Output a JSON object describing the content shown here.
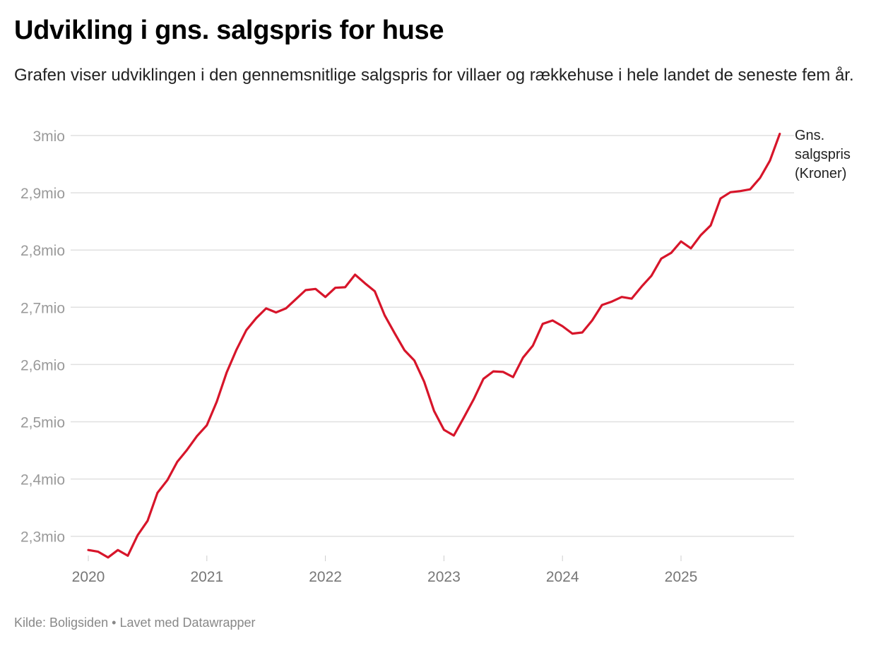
{
  "header": {
    "title": "Udvikling i gns. salgspris for huse",
    "subtitle": "Grafen viser udviklingen i den gennemsnitlige salgspris for villaer og rækkehuse i hele landet de seneste fem år."
  },
  "footer": {
    "source": "Kilde: Boligsiden",
    "separator": "•",
    "credit": "Lavet med Datawrapper"
  },
  "chart_data": {
    "type": "line",
    "title": "Udvikling i gns. salgspris for huse",
    "xlabel": "",
    "ylabel": "",
    "unit": "mio kr",
    "ylim": [
      2.25,
      3.0
    ],
    "yticks": [
      3.0,
      2.9,
      2.8,
      2.7,
      2.6,
      2.5,
      2.4,
      2.3
    ],
    "ytick_labels": [
      "3mio",
      "2,9mio",
      "2,8mio",
      "2,7mio",
      "2,6mio",
      "2,5mio",
      "2,4mio",
      "2,3mio"
    ],
    "xticks": [
      2020,
      2021,
      2022,
      2023,
      2024,
      2025
    ],
    "xtick_labels": [
      "2020",
      "2021",
      "2022",
      "2023",
      "2024",
      "2025"
    ],
    "grid": true,
    "line_color": "#d7152a",
    "series": [
      {
        "name": "Gns. salgspris (Kroner)",
        "label_lines": [
          "Gns.",
          "salgspris",
          "(Kroner)"
        ],
        "start": "2020-01",
        "frequency": "monthly",
        "values": [
          2.276,
          2.273,
          2.263,
          2.276,
          2.266,
          2.302,
          2.327,
          2.376,
          2.398,
          2.43,
          2.451,
          2.475,
          2.494,
          2.535,
          2.586,
          2.626,
          2.66,
          2.681,
          2.698,
          2.691,
          2.698,
          2.714,
          2.73,
          2.732,
          2.718,
          2.734,
          2.735,
          2.757,
          2.742,
          2.728,
          2.686,
          2.655,
          2.625,
          2.607,
          2.57,
          2.519,
          2.486,
          2.476,
          2.507,
          2.539,
          2.575,
          2.588,
          2.587,
          2.578,
          2.612,
          2.633,
          2.671,
          2.677,
          2.667,
          2.654,
          2.656,
          2.677,
          2.704,
          2.71,
          2.718,
          2.715,
          2.736,
          2.755,
          2.785,
          2.795,
          2.815,
          2.803,
          2.826,
          2.843,
          2.89,
          2.901,
          2.903,
          2.906,
          2.926,
          2.956,
          3.003
        ]
      }
    ]
  }
}
